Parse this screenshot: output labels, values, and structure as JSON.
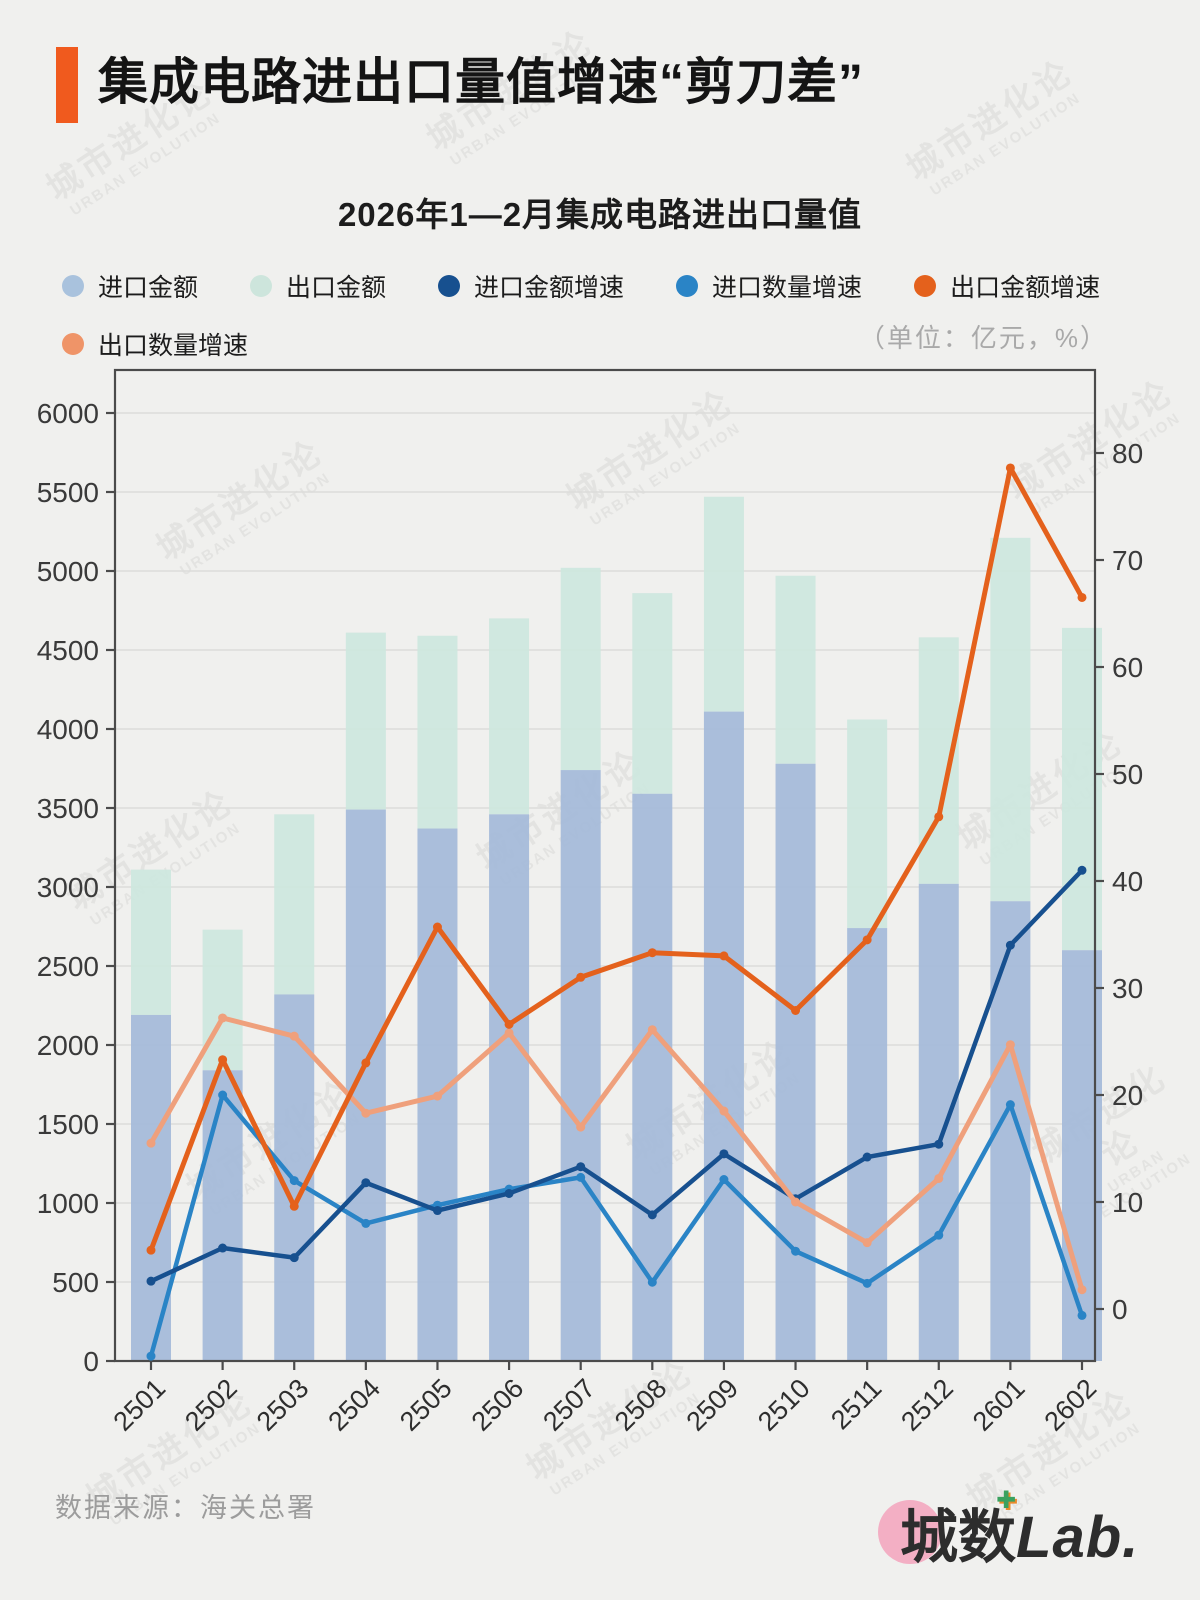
{
  "page": {
    "background": "#f0f0ee"
  },
  "header": {
    "accent_color": "#f05a1e",
    "title": "集成电路进出口量值增速“剪刀差”"
  },
  "subtitle": "2026年1—2月集成电路进出口量值",
  "legend": {
    "items": [
      {
        "label": "进口金额",
        "color": "#a9c2dd",
        "type": "bar"
      },
      {
        "label": "出口金额",
        "color": "#cde5dc",
        "type": "bar"
      },
      {
        "label": "进口金额增速",
        "color": "#17508f",
        "type": "line"
      },
      {
        "label": "进口数量增速",
        "color": "#2a84c6",
        "type": "line"
      },
      {
        "label": "出口金额增速",
        "color": "#e4611c",
        "type": "line"
      },
      {
        "label": "出口数量增速",
        "color": "#ef9468",
        "type": "line"
      }
    ],
    "unit_note": "（单位：亿元，%）"
  },
  "chart_data": {
    "type": "bar",
    "subtype": "stacked-bars-with-lines-dual-axis",
    "categories": [
      "2501",
      "2502",
      "2503",
      "2504",
      "2505",
      "2506",
      "2507",
      "2508",
      "2509",
      "2510",
      "2511",
      "2512",
      "2601",
      "2602"
    ],
    "left_axis": {
      "min": 0,
      "max": 6000,
      "tick_step": 500,
      "unit": "亿元"
    },
    "right_axis": {
      "min": 0,
      "max": 80,
      "tick_step": 10,
      "unit": "%"
    },
    "grid": "horizontal-only",
    "legend_position": "top-left",
    "bar_series": [
      {
        "name": "进口金额",
        "color": "#a5bbd9",
        "axis": "left",
        "stack": "base",
        "values": [
          2190,
          1840,
          2320,
          3490,
          3370,
          3460,
          3740,
          3590,
          4110,
          3780,
          2740,
          3020,
          2910,
          2600
        ]
      },
      {
        "name": "出口金额",
        "color": "#cee7de",
        "axis": "left",
        "stack": "on-top",
        "values": [
          920,
          890,
          1140,
          1120,
          1220,
          1240,
          1280,
          1270,
          1360,
          1190,
          1320,
          1560,
          2300,
          2040
        ]
      }
    ],
    "line_series": [
      {
        "name": "进口数量增速",
        "color": "#2a84c6",
        "axis": "right",
        "width": 4.5,
        "values": [
          -4.4,
          20.0,
          12.0,
          8.0,
          9.7,
          11.2,
          12.3,
          2.5,
          12.1,
          5.4,
          2.4,
          6.9,
          19.1,
          -0.6
        ]
      },
      {
        "name": "进口金额增速",
        "color": "#17508f",
        "axis": "right",
        "width": 4.5,
        "values": [
          2.6,
          5.7,
          4.8,
          11.8,
          9.2,
          10.8,
          13.3,
          8.8,
          14.5,
          10.3,
          14.2,
          15.4,
          34.0,
          41.0
        ]
      },
      {
        "name": "出口数量增速",
        "color": "#efa07c",
        "axis": "right",
        "width": 5,
        "values": [
          15.5,
          27.2,
          25.5,
          18.3,
          19.9,
          25.8,
          17.0,
          26.1,
          18.5,
          10.0,
          6.2,
          12.2,
          24.7,
          1.8
        ]
      },
      {
        "name": "出口金额增速",
        "color": "#e4611c",
        "axis": "right",
        "width": 5,
        "values": [
          5.5,
          23.3,
          9.6,
          23.0,
          35.7,
          26.6,
          31.0,
          33.3,
          33.0,
          27.9,
          34.5,
          46.0,
          78.6,
          66.5
        ]
      }
    ]
  },
  "footer": {
    "source": "数据来源：海关总署",
    "logo_cn": "城数",
    "logo_en": "Lab.",
    "logo_circle_color": "#f3afc4"
  },
  "watermark": {
    "line1": "城市进化论",
    "line2": "URBAN EVOLUTION"
  }
}
